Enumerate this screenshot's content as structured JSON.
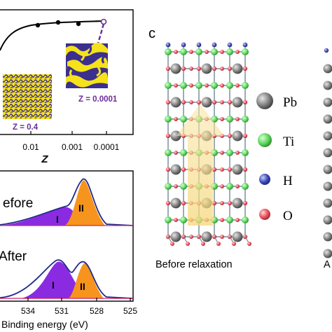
{
  "panel_a": {
    "xlabel": "Z",
    "xticks": [
      "0.01",
      "0.001",
      "0.0001"
    ],
    "annotation_low": "Z = 0.4",
    "annotation_high": "Z = 0.0001",
    "fit_color": "#000000",
    "pattern_colors": {
      "primary": "#3b2f8f",
      "secondary": "#f5e21a"
    }
  },
  "panel_b": {
    "xlabel": "Binding energy (eV)",
    "xticks": [
      "534",
      "531",
      "528",
      "525"
    ],
    "spectra": [
      {
        "label": "efore",
        "peaks": [
          "I",
          "II"
        ]
      },
      {
        "label": "After",
        "peaks": [
          "I",
          "II"
        ]
      }
    ],
    "colors": {
      "peak_I": "#8a2be2",
      "peak_II": "#f7941d",
      "envelope": "#1f2a8a",
      "data": "#d0206a"
    }
  },
  "panel_c": {
    "letter": "c",
    "caption_left": "Before relaxation",
    "caption_right": "A",
    "legend": [
      {
        "symbol": "Pb",
        "color": "#7f7f7f"
      },
      {
        "symbol": "Ti",
        "color": "#5ed65e"
      },
      {
        "symbol": "H",
        "color": "#3a48b8"
      },
      {
        "symbol": "O",
        "color": "#e8505b"
      }
    ],
    "arrow_color": "#f5d77a"
  }
}
